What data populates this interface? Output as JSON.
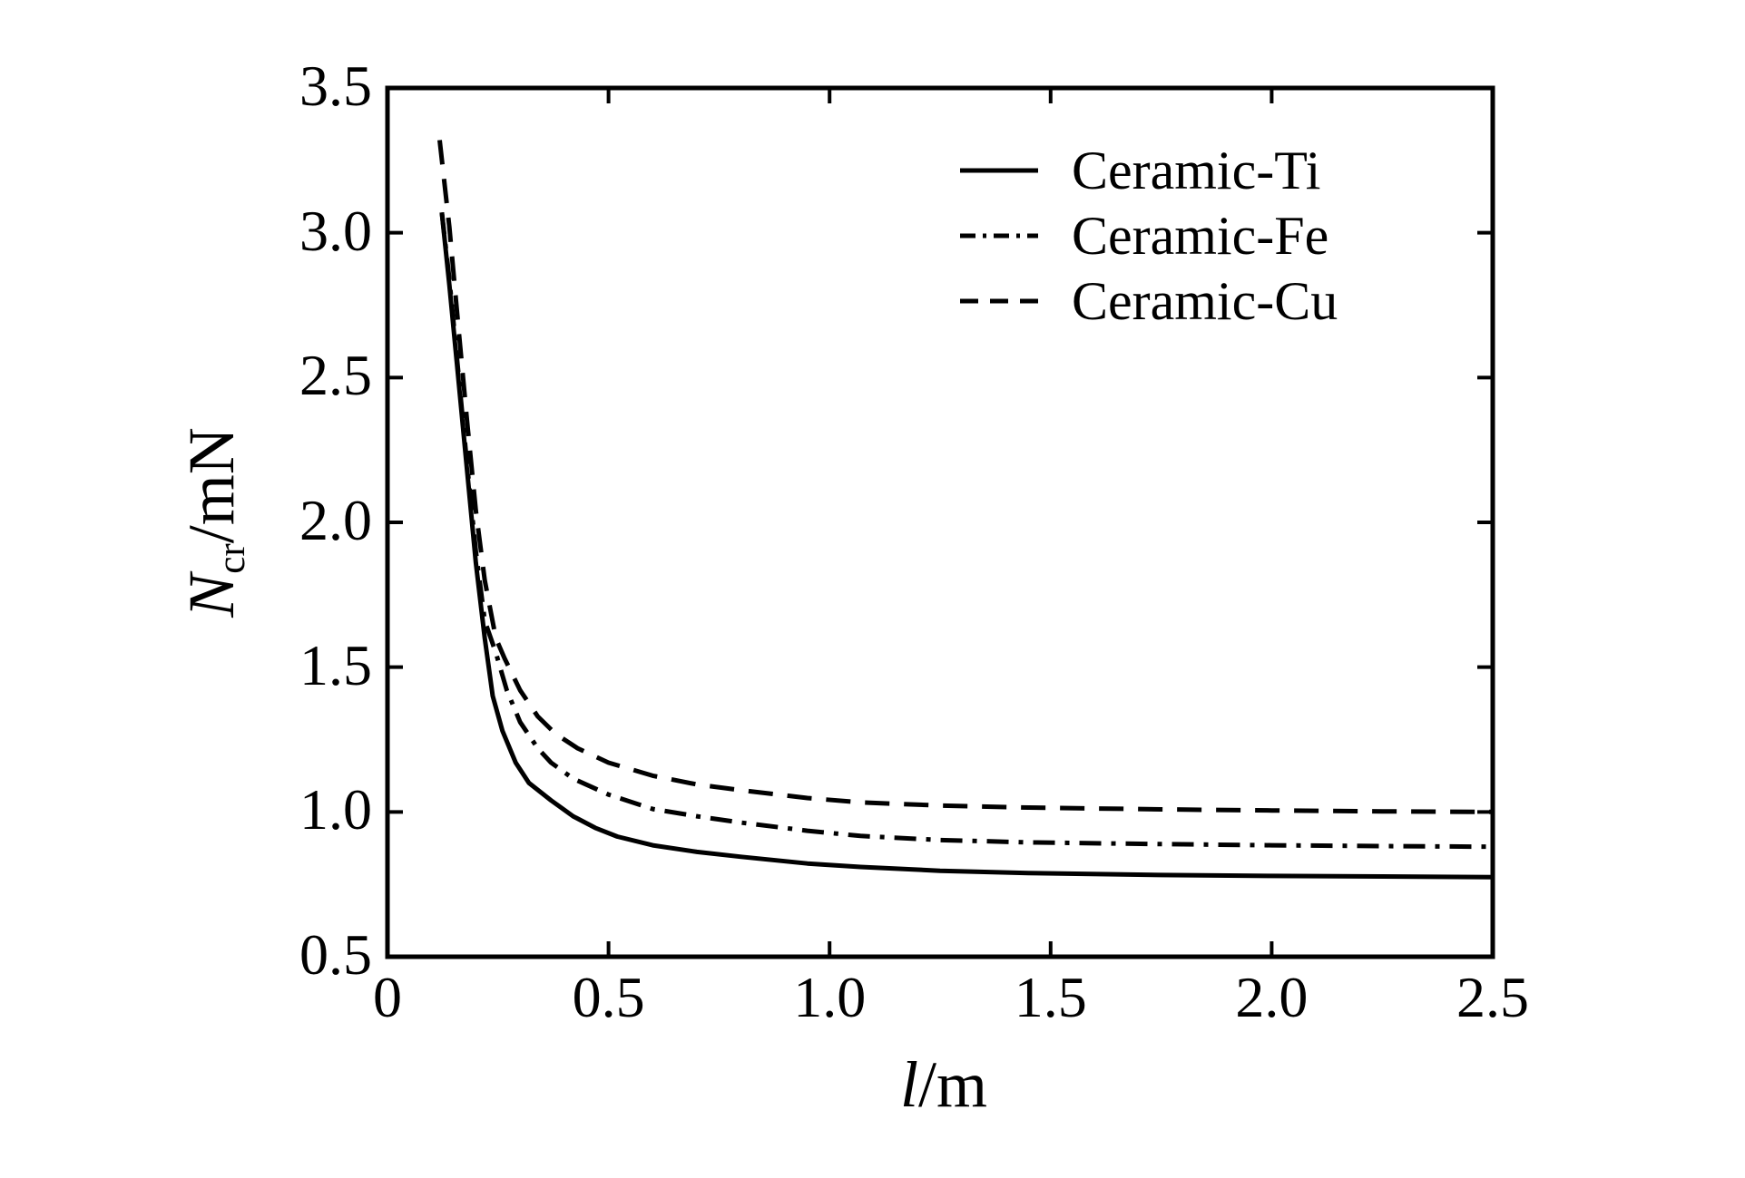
{
  "colors": {
    "foreground": "#000000",
    "background": "#ffffff"
  },
  "xlabel_parts": {
    "symbol": "l",
    "rest": "/m"
  },
  "ylabel_parts": {
    "symbol": "N",
    "subscript": "cr",
    "rest": "/mN"
  },
  "chart_data": {
    "type": "line",
    "title": "",
    "xlabel": "l/m",
    "ylabel": "N_cr/mN",
    "xlim": [
      0,
      2.5
    ],
    "ylim": [
      0.5,
      3.5
    ],
    "grid": false,
    "legend_position": "upper-right inside, frameless",
    "x_ticks": [
      {
        "value": 0,
        "label": "0"
      },
      {
        "value": 0.5,
        "label": "0.5"
      },
      {
        "value": 1.0,
        "label": "1.0"
      },
      {
        "value": 1.5,
        "label": "1.5"
      },
      {
        "value": 2.0,
        "label": "2.0"
      },
      {
        "value": 2.5,
        "label": "2.5"
      }
    ],
    "y_ticks": [
      {
        "value": 0.5,
        "label": "0.5"
      },
      {
        "value": 1.0,
        "label": "1.0"
      },
      {
        "value": 1.5,
        "label": "1.5"
      },
      {
        "value": 2.0,
        "label": "2.0"
      },
      {
        "value": 2.5,
        "label": "2.5"
      },
      {
        "value": 3.0,
        "label": "3.0"
      },
      {
        "value": 3.5,
        "label": "3.5"
      }
    ],
    "series": [
      {
        "name": "Ceramic-Ti",
        "line_style": "solid",
        "color": "#000000",
        "points": [
          [
            0.123,
            3.07
          ],
          [
            0.14,
            2.82
          ],
          [
            0.16,
            2.5
          ],
          [
            0.18,
            2.18
          ],
          [
            0.2,
            1.86
          ],
          [
            0.22,
            1.6
          ],
          [
            0.238,
            1.4
          ],
          [
            0.26,
            1.28
          ],
          [
            0.29,
            1.17
          ],
          [
            0.32,
            1.1
          ],
          [
            0.37,
            1.04
          ],
          [
            0.42,
            0.985
          ],
          [
            0.47,
            0.945
          ],
          [
            0.52,
            0.915
          ],
          [
            0.6,
            0.885
          ],
          [
            0.7,
            0.862
          ],
          [
            0.8,
            0.845
          ],
          [
            0.95,
            0.822
          ],
          [
            1.07,
            0.81
          ],
          [
            1.25,
            0.797
          ],
          [
            1.45,
            0.789
          ],
          [
            1.75,
            0.782
          ],
          [
            2.0,
            0.779
          ],
          [
            2.25,
            0.777
          ],
          [
            2.5,
            0.775
          ]
        ]
      },
      {
        "name": "Ceramic-Fe",
        "line_style": "dash-dot",
        "color": "#000000",
        "points": [
          [
            0.123,
            3.07
          ],
          [
            0.14,
            2.84
          ],
          [
            0.16,
            2.52
          ],
          [
            0.18,
            2.2
          ],
          [
            0.2,
            1.9
          ],
          [
            0.22,
            1.66
          ],
          [
            0.245,
            1.55
          ],
          [
            0.27,
            1.42
          ],
          [
            0.3,
            1.31
          ],
          [
            0.34,
            1.22
          ],
          [
            0.37,
            1.17
          ],
          [
            0.42,
            1.115
          ],
          [
            0.5,
            1.06
          ],
          [
            0.6,
            1.01
          ],
          [
            0.7,
            0.985
          ],
          [
            0.8,
            0.963
          ],
          [
            0.95,
            0.935
          ],
          [
            1.07,
            0.917
          ],
          [
            1.25,
            0.903
          ],
          [
            1.45,
            0.895
          ],
          [
            1.75,
            0.889
          ],
          [
            2.0,
            0.885
          ],
          [
            2.25,
            0.882
          ],
          [
            2.5,
            0.88
          ]
        ]
      },
      {
        "name": "Ceramic-Cu",
        "line_style": "dashed",
        "color": "#000000",
        "points": [
          [
            0.118,
            3.32
          ],
          [
            0.14,
            3.02
          ],
          [
            0.16,
            2.68
          ],
          [
            0.18,
            2.35
          ],
          [
            0.2,
            2.04
          ],
          [
            0.22,
            1.8
          ],
          [
            0.245,
            1.6
          ],
          [
            0.265,
            1.53
          ],
          [
            0.3,
            1.42
          ],
          [
            0.34,
            1.33
          ],
          [
            0.38,
            1.27
          ],
          [
            0.43,
            1.22
          ],
          [
            0.5,
            1.17
          ],
          [
            0.6,
            1.125
          ],
          [
            0.7,
            1.095
          ],
          [
            0.8,
            1.075
          ],
          [
            0.95,
            1.048
          ],
          [
            1.07,
            1.033
          ],
          [
            1.25,
            1.022
          ],
          [
            1.45,
            1.015
          ],
          [
            1.75,
            1.009
          ],
          [
            2.0,
            1.005
          ],
          [
            2.25,
            1.002
          ],
          [
            2.5,
            1.0
          ]
        ]
      }
    ]
  }
}
